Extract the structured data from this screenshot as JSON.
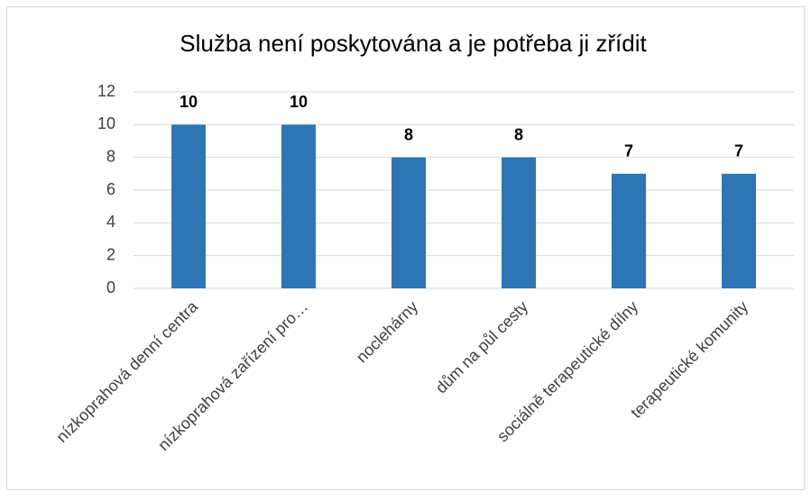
{
  "chart_data": {
    "type": "bar",
    "title": "Služba není poskytována a je potřeba ji zřídit",
    "categories": [
      "nízkoprahová denní centra",
      "nízkoprahová zařízení pro…",
      "noclehárny",
      "dům na půl cesty",
      "sociálně terapeutické dílny",
      "terapeutické komunity"
    ],
    "values": [
      10,
      10,
      8,
      8,
      7,
      7
    ],
    "color": "#2e75b6",
    "ylim": [
      0,
      12
    ],
    "yticks": [
      0,
      2,
      4,
      6,
      8,
      10,
      12
    ],
    "grid": true,
    "data_labels": true
  }
}
